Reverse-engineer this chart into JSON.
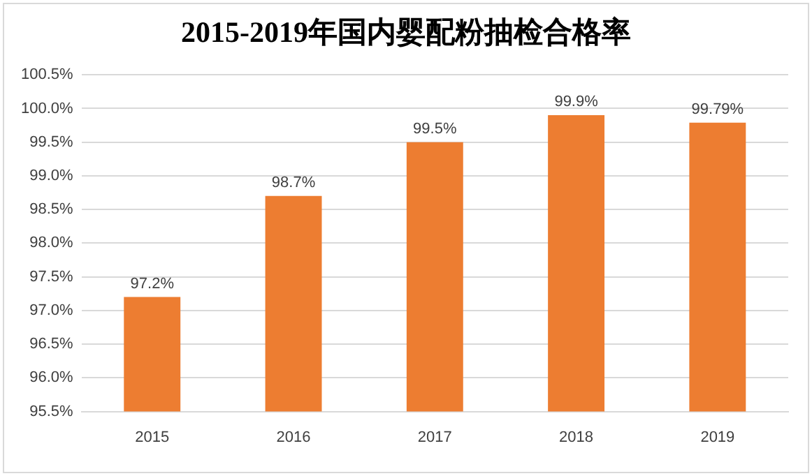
{
  "chart_data": {
    "type": "bar",
    "title": "2015-2019年国内婴配粉抽检合格率",
    "categories": [
      "2015",
      "2016",
      "2017",
      "2018",
      "2019"
    ],
    "values": [
      97.2,
      98.7,
      99.5,
      99.9,
      99.79
    ],
    "value_labels": [
      "97.2%",
      "98.7%",
      "99.5%",
      "99.9%",
      "99.79%"
    ],
    "color": "#ed7d31",
    "ylim": [
      95.5,
      100.5
    ],
    "yticks": [
      {
        "value": 95.5,
        "label": "95.5%"
      },
      {
        "value": 96.0,
        "label": "96.0%"
      },
      {
        "value": 96.5,
        "label": "96.5%"
      },
      {
        "value": 97.0,
        "label": "97.0%"
      },
      {
        "value": 97.5,
        "label": "97.5%"
      },
      {
        "value": 98.0,
        "label": "98.0%"
      },
      {
        "value": 98.5,
        "label": "98.5%"
      },
      {
        "value": 99.0,
        "label": "99.0%"
      },
      {
        "value": 99.5,
        "label": "99.5%"
      },
      {
        "value": 100.0,
        "label": "100.0%"
      },
      {
        "value": 100.5,
        "label": "100.5%"
      }
    ],
    "grid": "y",
    "legend": false
  }
}
